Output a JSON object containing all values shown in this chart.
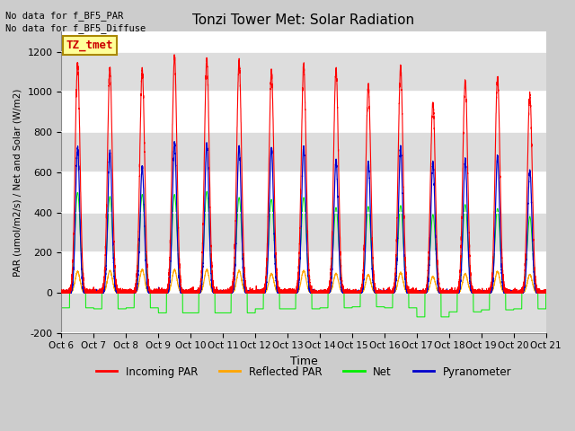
{
  "title": "Tonzi Tower Met: Solar Radiation",
  "xlabel": "Time",
  "ylabel": "PAR (umol/m2/s) / Net and Solar (W/m2)",
  "ylim": [
    -200,
    1300
  ],
  "yticks": [
    -200,
    0,
    200,
    400,
    600,
    800,
    1000,
    1200
  ],
  "n_days": 15,
  "xtick_labels": [
    "Oct 6",
    "Oct 7",
    "Oct 8",
    "Oct 9",
    "Oct 10",
    "Oct 11",
    "Oct 12",
    "Oct 13",
    "Oct 14",
    "Oct 15",
    "Oct 16",
    "Oct 17",
    "Oct 18",
    "Oct 19",
    "Oct 20",
    "Oct 21"
  ],
  "note_lines": [
    "No data for f_BF5_PAR",
    "No data for f_BF5_Diffuse"
  ],
  "legend_label": "TZ_tmet",
  "colors": {
    "incoming_par": "#FF0000",
    "reflected_par": "#FFA500",
    "net": "#00EE00",
    "pyranometer": "#0000CC"
  },
  "legend_entries": [
    "Incoming PAR",
    "Reflected PAR",
    "Net",
    "Pyranometer"
  ],
  "fig_bg_color": "#CCCCCC",
  "plot_bg_color": "#FFFFFF",
  "band_color": "#DDDDDD",
  "day_peaks": {
    "incoming": [
      1140,
      1120,
      1110,
      1175,
      1160,
      1150,
      1100,
      1130,
      1110,
      1030,
      1120,
      945,
      1055,
      1070,
      980
    ],
    "reflected": [
      105,
      110,
      115,
      115,
      115,
      110,
      95,
      110,
      95,
      90,
      100,
      80,
      95,
      105,
      90
    ],
    "net": [
      500,
      480,
      490,
      490,
      505,
      475,
      465,
      475,
      425,
      430,
      435,
      390,
      440,
      420,
      380
    ],
    "pyranometer": [
      720,
      700,
      625,
      750,
      740,
      730,
      720,
      725,
      660,
      650,
      720,
      650,
      660,
      680,
      610
    ],
    "net_night": [
      -75,
      -80,
      -75,
      -100,
      -100,
      -100,
      -80,
      -80,
      -75,
      -70,
      -75,
      -120,
      -95,
      -85,
      -80
    ]
  }
}
